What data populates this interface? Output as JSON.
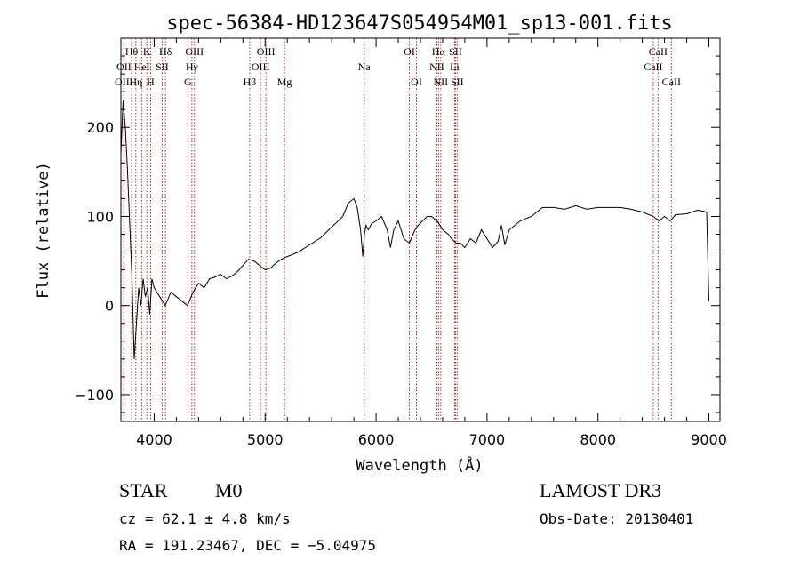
{
  "chart_data": {
    "type": "line",
    "title": "spec-56384-HD123647S054954M01_sp13-001.fits",
    "xlabel": "Wavelength (Å)",
    "ylabel": "Flux (relative)",
    "xlim": [
      3700,
      9100
    ],
    "ylim": [
      -130,
      300
    ],
    "xticks": [
      4000,
      5000,
      6000,
      7000,
      8000,
      9000
    ],
    "yticks": [
      -100,
      0,
      100,
      200
    ],
    "xtick_labels": [
      "4000",
      "5000",
      "6000",
      "7000",
      "8000",
      "9000"
    ],
    "ytick_labels": [
      "−100",
      "0",
      "100",
      "200"
    ],
    "grid": false,
    "series": [
      {
        "name": "flux",
        "x": [
          3700,
          3720,
          3740,
          3760,
          3780,
          3800,
          3820,
          3840,
          3860,
          3880,
          3900,
          3920,
          3940,
          3960,
          3980,
          4000,
          4050,
          4100,
          4150,
          4200,
          4250,
          4300,
          4350,
          4400,
          4450,
          4500,
          4550,
          4600,
          4650,
          4700,
          4750,
          4800,
          4850,
          4900,
          4950,
          5000,
          5050,
          5100,
          5150,
          5200,
          5300,
          5400,
          5500,
          5600,
          5700,
          5750,
          5800,
          5830,
          5860,
          5880,
          5895,
          5910,
          5930,
          5960,
          6000,
          6050,
          6100,
          6130,
          6160,
          6200,
          6250,
          6300,
          6350,
          6380,
          6420,
          6460,
          6500,
          6550,
          6600,
          6650,
          6680,
          6720,
          6760,
          6800,
          6850,
          6900,
          6950,
          7000,
          7050,
          7100,
          7130,
          7160,
          7200,
          7250,
          7300,
          7400,
          7500,
          7600,
          7700,
          7800,
          7900,
          8000,
          8100,
          8200,
          8300,
          8400,
          8500,
          8550,
          8600,
          8650,
          8700,
          8800,
          8900,
          8980,
          9000
        ],
        "y": [
          170,
          230,
          200,
          150,
          90,
          30,
          -60,
          -20,
          20,
          0,
          30,
          10,
          20,
          -10,
          30,
          20,
          10,
          0,
          15,
          10,
          5,
          0,
          15,
          25,
          20,
          30,
          32,
          35,
          30,
          33,
          38,
          45,
          52,
          50,
          45,
          40,
          42,
          48,
          52,
          55,
          60,
          68,
          76,
          88,
          100,
          115,
          120,
          110,
          85,
          55,
          80,
          90,
          85,
          92,
          95,
          100,
          85,
          65,
          85,
          95,
          75,
          70,
          85,
          90,
          95,
          100,
          100,
          95,
          85,
          80,
          75,
          70,
          70,
          65,
          75,
          70,
          85,
          75,
          65,
          72,
          90,
          68,
          85,
          90,
          95,
          100,
          110,
          110,
          108,
          112,
          108,
          110,
          110,
          110,
          108,
          105,
          100,
          95,
          100,
          95,
          102,
          103,
          107,
          105,
          5
        ],
        "color": "#000000"
      }
    ],
    "line_markers": [
      {
        "label": "Hθ",
        "wavelength": 3797,
        "row": 1
      },
      {
        "label": "OII",
        "wavelength": 3727,
        "row": 2
      },
      {
        "label": "OIII",
        "wavelength": 3727,
        "row": 3
      },
      {
        "label": "K",
        "wavelength": 3934,
        "row": 1
      },
      {
        "label": "HeI",
        "wavelength": 3889,
        "row": 2
      },
      {
        "label": "Hη",
        "wavelength": 3835,
        "row": 3
      },
      {
        "label": "Hδ",
        "wavelength": 4102,
        "row": 1
      },
      {
        "label": "SII",
        "wavelength": 4072,
        "row": 2
      },
      {
        "label": "H",
        "wavelength": 3968,
        "row": 3
      },
      {
        "label": "OIII",
        "wavelength": 4363,
        "row": 1
      },
      {
        "label": "Hγ",
        "wavelength": 4340,
        "row": 2
      },
      {
        "label": "G",
        "wavelength": 4304,
        "row": 3
      },
      {
        "label": "OIII",
        "wavelength": 5007,
        "row": 1
      },
      {
        "label": "OIII",
        "wavelength": 4959,
        "row": 2
      },
      {
        "label": "Hβ",
        "wavelength": 4861,
        "row": 3
      },
      {
        "label": "Mg",
        "wavelength": 5175,
        "row": 3
      },
      {
        "label": "Na",
        "wavelength": 5893,
        "row": 2
      },
      {
        "label": "OI",
        "wavelength": 6300,
        "row": 1
      },
      {
        "label": "OI",
        "wavelength": 6364,
        "row": 3
      },
      {
        "label": "Hα",
        "wavelength": 6563,
        "row": 1
      },
      {
        "label": "SII",
        "wavelength": 6716,
        "row": 1
      },
      {
        "label": "NII",
        "wavelength": 6548,
        "row": 2
      },
      {
        "label": "Li",
        "wavelength": 6708,
        "row": 2
      },
      {
        "label": "NII",
        "wavelength": 6583,
        "row": 3
      },
      {
        "label": "SII",
        "wavelength": 6731,
        "row": 3
      },
      {
        "label": "CaII",
        "wavelength": 8542,
        "row": 1
      },
      {
        "label": "CaII",
        "wavelength": 8498,
        "row": 2
      },
      {
        "label": "CaII",
        "wavelength": 8662,
        "row": 3
      }
    ]
  },
  "info": {
    "class_label": "STAR",
    "subclass": "M0",
    "survey": "LAMOST DR3",
    "cz": "cz = 62.1 ± 4.8 km/s",
    "obs_date": "Obs-Date: 20130401",
    "coords": "RA = 191.23467, DEC =  −5.04975"
  }
}
